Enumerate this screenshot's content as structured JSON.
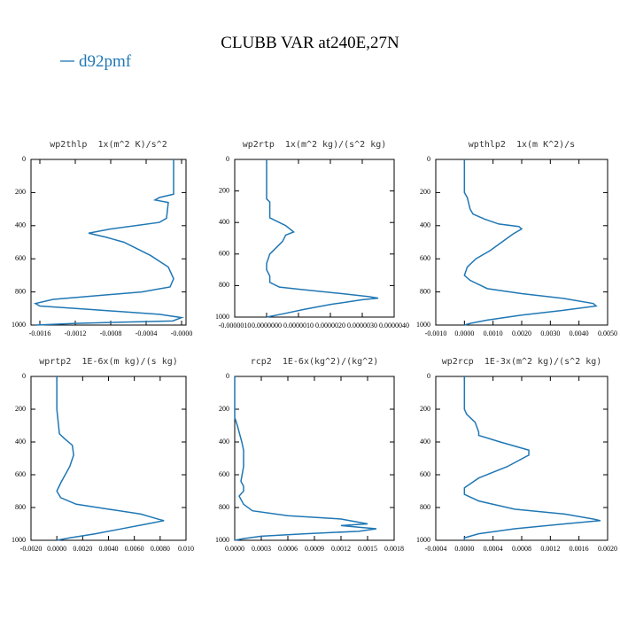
{
  "title": "CLUBB VAR at240E,27N",
  "legend": {
    "name": "d92pmf",
    "color": "#1f77b4"
  },
  "chart_data": [
    {
      "type": "line",
      "title": "wp2thlp  1x(m^2 K)/s^2",
      "x": [
        -9e-05,
        -9e-05,
        -0.00025,
        -0.0003,
        -0.00015,
        -0.00017,
        -0.00025,
        -0.0008,
        -0.00105,
        -0.00085,
        -0.00065,
        -0.00035,
        -0.00015,
        -9e-05,
        -0.00013,
        -0.00045,
        -0.00145,
        -0.00165,
        -0.0016,
        -0.00105,
        -0.00025,
        0.0,
        -0.0001,
        -0.0012,
        -0.00165
      ],
      "values": [
        0,
        210,
        230,
        245,
        260,
        355,
        380,
        420,
        445,
        470,
        500,
        580,
        650,
        720,
        770,
        800,
        845,
        870,
        885,
        905,
        935,
        955,
        975,
        990,
        1000
      ],
      "xlim": [
        -0.0017,
        5e-05
      ],
      "ylim": [
        1000,
        0
      ],
      "xticks": [
        {
          "value": -0.0016,
          "label": "-0.0016"
        },
        {
          "value": -0.0012,
          "label": "-0.0012"
        },
        {
          "value": -0.0008,
          "label": "-0.0008"
        },
        {
          "value": -0.0004,
          "label": "-0.0004"
        },
        {
          "value": 0,
          "label": "-0.0000"
        }
      ],
      "yticks": [
        0,
        200,
        400,
        600,
        800,
        1000
      ]
    },
    {
      "type": "line",
      "title": "wp2rtp  1x(m^2 kg)/(s^2 kg)",
      "x": [
        0.0,
        0.0,
        1e-07,
        1e-07,
        1e-07,
        3e-07,
        6e-07,
        8.5e-07,
        6e-07,
        5e-07,
        3e-07,
        1e-07,
        0.0,
        0.0,
        1e-07,
        1e-07,
        4e-07,
        1.1e-06,
        2.3e-06,
        3.2e-06,
        3.5e-06,
        3e-06,
        2e-06,
        1.2e-06,
        5e-07,
        0.0
      ],
      "values": [
        0,
        250,
        270,
        300,
        370,
        390,
        420,
        460,
        480,
        520,
        560,
        600,
        660,
        700,
        740,
        780,
        810,
        825,
        850,
        870,
        880,
        890,
        920,
        950,
        980,
        1000
      ],
      "xlim": [
        -1e-06,
        4e-06
      ],
      "ylim": [
        1000,
        0
      ],
      "xticks": [
        {
          "value": -1e-06,
          "label": "-0.0000010"
        },
        {
          "value": 0,
          "label": "0.0000000"
        },
        {
          "value": 1e-06,
          "label": "0.0000010"
        },
        {
          "value": 2e-06,
          "label": "0.0000020"
        },
        {
          "value": 3e-06,
          "label": "0.0000030"
        },
        {
          "value": 4e-06,
          "label": "0.0000040"
        }
      ],
      "yticks": [
        0,
        200,
        400,
        600,
        800,
        1000
      ]
    },
    {
      "type": "line",
      "title": "wpthlp2  1x(m K^2)/s",
      "x": [
        0.0,
        0.0,
        0.0001,
        0.0002,
        0.0003,
        0.0007,
        0.0012,
        0.0019,
        0.002,
        0.0017,
        0.0013,
        0.0009,
        0.0004,
        0.0001,
        0.0,
        0.0002,
        0.0008,
        0.002,
        0.0035,
        0.0045,
        0.0046,
        0.0035,
        0.002,
        0.0008,
        0.0002,
        0.0
      ],
      "values": [
        0,
        200,
        230,
        300,
        330,
        360,
        390,
        405,
        420,
        450,
        500,
        550,
        600,
        650,
        700,
        730,
        780,
        810,
        840,
        870,
        885,
        910,
        940,
        970,
        990,
        1000
      ],
      "xlim": [
        -0.001,
        0.005
      ],
      "ylim": [
        1000,
        0
      ],
      "xticks": [
        {
          "value": -0.001,
          "label": "-0.0010"
        },
        {
          "value": 0,
          "label": "0.0000"
        },
        {
          "value": 0.001,
          "label": "0.0010"
        },
        {
          "value": 0.002,
          "label": "0.0020"
        },
        {
          "value": 0.003,
          "label": "0.0030"
        },
        {
          "value": 0.004,
          "label": "0.0040"
        },
        {
          "value": 0.005,
          "label": "0.0050"
        }
      ],
      "yticks": [
        0,
        200,
        400,
        600,
        800,
        1000
      ]
    },
    {
      "type": "line",
      "title": "wprtp2  1E-6x(m kg)/(s kg)",
      "x": [
        0.0,
        0.0,
        0.0002,
        0.0006,
        0.0012,
        0.0013,
        0.001,
        0.0003,
        0.0,
        0.0003,
        0.0015,
        0.004,
        0.0065,
        0.0078,
        0.0083,
        0.007,
        0.005,
        0.003,
        0.001,
        0.0
      ],
      "values": [
        0,
        200,
        350,
        380,
        420,
        480,
        550,
        650,
        700,
        740,
        780,
        810,
        840,
        870,
        880,
        900,
        930,
        960,
        985,
        1000
      ],
      "xlim": [
        -0.002,
        0.01
      ],
      "ylim": [
        1000,
        0
      ],
      "xticks": [
        {
          "value": -0.002,
          "label": "-0.0020"
        },
        {
          "value": 0,
          "label": "0.0000"
        },
        {
          "value": 0.002,
          "label": "0.0020"
        },
        {
          "value": 0.004,
          "label": "0.0040"
        },
        {
          "value": 0.006,
          "label": "0.0060"
        },
        {
          "value": 0.008,
          "label": "0.0080"
        },
        {
          "value": 0.01,
          "label": "0.010"
        }
      ],
      "yticks": [
        0,
        200,
        400,
        600,
        800,
        1000
      ]
    },
    {
      "type": "line",
      "title": "rcp2  1E-6x(kg^2)/(kg^2)",
      "x": [
        0.0,
        0.0,
        3e-05,
        8e-05,
        0.0001,
        0.0001,
        7e-05,
        0.0001,
        0.0001,
        5e-05,
        0.0001,
        0.0002,
        0.0006,
        0.0012,
        0.0014,
        0.0015,
        0.0012,
        0.0014,
        0.0016,
        0.0014,
        0.0008,
        0.0003,
        0.0001,
        0.0
      ],
      "values": [
        0,
        250,
        300,
        400,
        450,
        550,
        640,
        670,
        700,
        730,
        780,
        820,
        850,
        870,
        890,
        900,
        910,
        920,
        930,
        945,
        960,
        975,
        990,
        1000
      ],
      "xlim": [
        0,
        0.0018
      ],
      "ylim": [
        1000,
        0
      ],
      "xticks": [
        {
          "value": 0,
          "label": "0.0000"
        },
        {
          "value": 0.0003,
          "label": "0.0003"
        },
        {
          "value": 0.0006,
          "label": "0.0006"
        },
        {
          "value": 0.0009,
          "label": "0.0009"
        },
        {
          "value": 0.0012,
          "label": "0.0012"
        },
        {
          "value": 0.0015,
          "label": "0.0015"
        },
        {
          "value": 0.0018,
          "label": "0.0018"
        }
      ],
      "yticks": [
        0,
        200,
        400,
        600,
        800,
        1000
      ]
    },
    {
      "type": "line",
      "title": "wp2rcp  1E-3x(m^2 kg)/(s^2 kg)",
      "x": [
        0.0,
        0.0,
        3e-05,
        0.00015,
        0.0002,
        0.0002,
        0.0005,
        0.0009,
        0.0009,
        0.0006,
        0.0002,
        0.0,
        0.0,
        0.0002,
        0.0007,
        0.0014,
        0.0018,
        0.0019,
        0.0014,
        0.0007,
        0.0002,
        0.0,
        0.0
      ],
      "values": [
        0,
        200,
        230,
        280,
        340,
        360,
        400,
        450,
        480,
        550,
        620,
        680,
        720,
        760,
        810,
        840,
        870,
        880,
        900,
        930,
        960,
        985,
        1000
      ],
      "xlim": [
        -0.0004,
        0.002
      ],
      "ylim": [
        1000,
        0
      ],
      "xticks": [
        {
          "value": -0.0004,
          "label": "-0.0004"
        },
        {
          "value": 0,
          "label": "0.0000"
        },
        {
          "value": 0.0004,
          "label": "0.0004"
        },
        {
          "value": 0.0008,
          "label": "0.0008"
        },
        {
          "value": 0.0012,
          "label": "0.0012"
        },
        {
          "value": 0.0016,
          "label": "0.0016"
        },
        {
          "value": 0.002,
          "label": "0.0020"
        }
      ],
      "yticks": [
        0,
        200,
        400,
        600,
        800,
        1000
      ]
    }
  ]
}
